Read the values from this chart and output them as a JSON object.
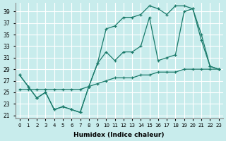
{
  "xlabel": "Humidex (Indice chaleur)",
  "background_color": "#c8ecec",
  "grid_color": "#ffffff",
  "line_color": "#1a7a6a",
  "xlim": [
    -0.5,
    23.5
  ],
  "ylim": [
    20.5,
    40.5
  ],
  "xticks": [
    0,
    1,
    2,
    3,
    4,
    5,
    6,
    7,
    8,
    9,
    10,
    11,
    12,
    13,
    14,
    15,
    16,
    17,
    18,
    19,
    20,
    21,
    22,
    23
  ],
  "yticks": [
    21,
    23,
    25,
    27,
    29,
    31,
    33,
    35,
    37,
    39
  ],
  "line1_x": [
    0,
    1,
    2,
    3,
    4,
    5,
    6,
    7,
    8,
    9,
    10,
    11,
    12,
    13,
    14,
    15,
    16,
    17,
    18,
    19,
    20,
    21,
    22,
    23
  ],
  "line1_y": [
    28,
    26,
    24,
    25,
    22,
    22.5,
    22,
    21.5,
    26,
    30,
    36,
    36.5,
    38,
    38,
    38.5,
    40,
    39.5,
    38.5,
    40,
    40,
    39.5,
    35,
    29.5,
    29
  ],
  "line2_x": [
    0,
    1,
    2,
    3,
    4,
    5,
    6,
    7,
    8,
    9,
    10,
    11,
    12,
    13,
    14,
    15,
    16,
    17,
    18,
    19,
    20,
    21,
    22,
    23
  ],
  "line2_y": [
    28,
    26,
    24,
    25,
    22,
    22.5,
    22,
    21.5,
    26,
    30,
    32,
    30.5,
    32,
    32,
    33,
    38,
    30.5,
    31,
    31.5,
    39,
    39.5,
    34,
    29.5,
    29
  ],
  "line3_x": [
    0,
    1,
    2,
    3,
    4,
    5,
    6,
    7,
    8,
    9,
    10,
    11,
    12,
    13,
    14,
    15,
    16,
    17,
    18,
    19,
    20,
    21,
    22,
    23
  ],
  "line3_y": [
    25.5,
    25.5,
    25.5,
    25.5,
    25.5,
    25.5,
    25.5,
    25.5,
    26,
    26.5,
    27,
    27.5,
    27.5,
    27.5,
    28,
    28,
    28.5,
    28.5,
    28.5,
    29,
    29,
    29,
    29,
    29
  ]
}
